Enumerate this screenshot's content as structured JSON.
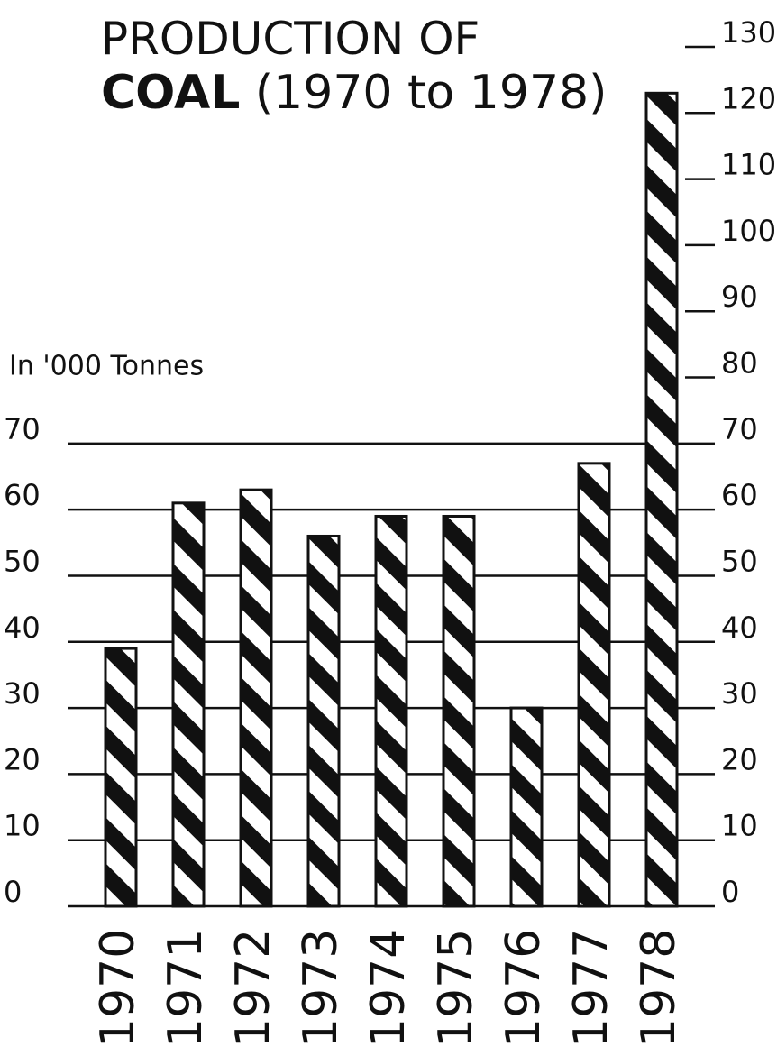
{
  "chart_data": {
    "type": "bar",
    "title": [
      "PRODUCTION OF",
      "COAL",
      "(1970 to 1978)"
    ],
    "y_axis_label": "In '000 Tonnes",
    "categories": [
      "1970",
      "1971",
      "1972",
      "1973",
      "1974",
      "1975",
      "1976",
      "1977",
      "1978"
    ],
    "values": [
      39,
      61,
      63,
      56,
      59,
      59,
      30,
      67,
      123
    ],
    "color": "#111111",
    "ylim": [
      0,
      130
    ],
    "yticks": [
      0,
      10,
      20,
      30,
      40,
      50,
      60,
      70
    ],
    "y2lim": [
      0,
      130
    ],
    "y2ticks": [
      0,
      10,
      20,
      30,
      40,
      50,
      60,
      70,
      80,
      90,
      100,
      110,
      120,
      130
    ],
    "grid": true
  }
}
